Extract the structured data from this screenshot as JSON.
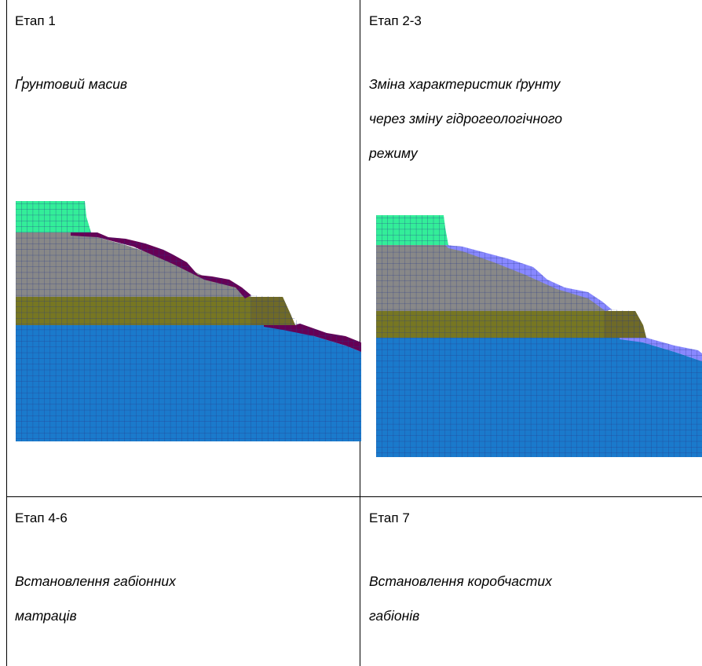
{
  "cells": [
    {
      "stage": "Етап 1",
      "description_lines": [
        "Ґрунтовий масив"
      ]
    },
    {
      "stage": "Етап 2-3",
      "description_lines": [
        "Зміна характеристик ґрунту",
        "через зміну гідрогеологічного",
        "режиму"
      ]
    },
    {
      "stage": "Етап 4-6",
      "description_lines": [
        "Встановлення габіонних",
        "матраців"
      ]
    },
    {
      "stage": "Етап 7",
      "description_lines": [
        "Встановлення коробчастих",
        "габіонів"
      ]
    }
  ],
  "colors": {
    "mint": "#33ee99",
    "grey": "#888888",
    "olive": "#777722",
    "blue": "#1a7acc",
    "maroon": "#660055",
    "lavender": "#8888ff",
    "mesh": "#2a3a88"
  }
}
